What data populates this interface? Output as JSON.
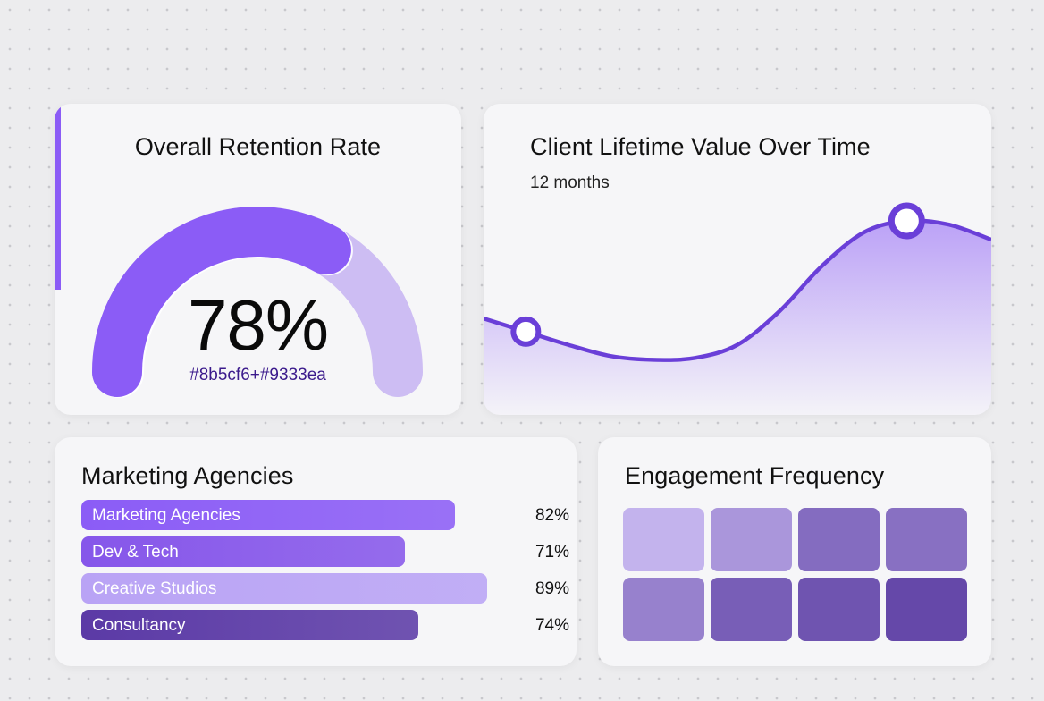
{
  "gauge_card": {
    "title": "Overall Retention Rate",
    "value_label": "78%",
    "caption": "#8b5cf6+#9333ea"
  },
  "line_card": {
    "title": "Client Lifetime Value Over Time",
    "subtitle": "12 months"
  },
  "bars_card": {
    "title": "Marketing Agencies"
  },
  "heat_card": {
    "title": "Engagement Frequency"
  },
  "colors": {
    "accent": "#8b5cf6",
    "accent_dark": "#5b3bb8",
    "track_light": "#cdbdf3",
    "line_stroke": "#6a3fd8"
  },
  "chart_data": [
    {
      "type": "gauge",
      "title": "Overall Retention Rate",
      "value": 78,
      "max": 100,
      "unit": "%"
    },
    {
      "type": "line",
      "title": "Client Lifetime Value Over Time",
      "subtitle": "12 months",
      "x": [
        0,
        1,
        2,
        3,
        4,
        5,
        6,
        7,
        8,
        9,
        10,
        11,
        12
      ],
      "values": [
        38,
        31,
        24,
        18,
        16,
        17,
        24,
        42,
        66,
        84,
        90,
        88,
        80
      ],
      "highlighted_points": [
        1,
        10
      ],
      "area_fill": true
    },
    {
      "type": "bar",
      "orientation": "horizontal",
      "title": "Marketing Agencies",
      "categories": [
        "Marketing Agencies",
        "Dev & Tech",
        "Creative Studios",
        "Consultancy"
      ],
      "values": [
        82,
        71,
        89,
        74
      ],
      "value_labels": [
        "82%",
        "71%",
        "89%",
        "74%"
      ],
      "colors": [
        "#8b5cf6",
        "#8656ea",
        "#b9a3f5",
        "#5b3aa6"
      ]
    },
    {
      "type": "heatmap",
      "title": "Engagement Frequency",
      "rows": 2,
      "cols": 4,
      "intensity": [
        [
          0.15,
          0.35,
          0.65,
          0.62
        ],
        [
          0.5,
          0.75,
          0.82,
          0.9
        ]
      ]
    }
  ]
}
